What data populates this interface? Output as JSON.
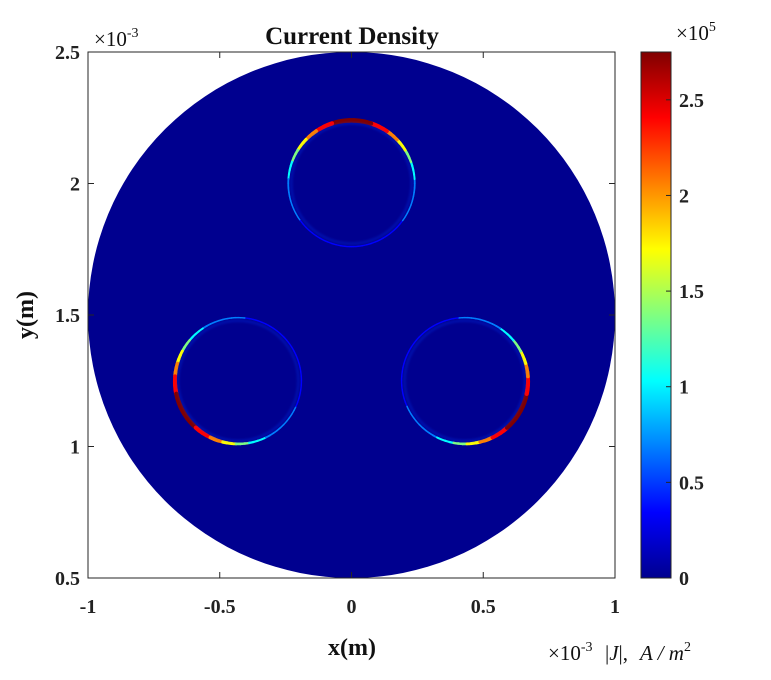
{
  "chart_data": {
    "type": "heatmap",
    "title": "Current Density",
    "xlabel": "x(m)",
    "ylabel": "y(m)",
    "x_ticks": [
      "-1",
      "-0.5",
      "0",
      "0.5",
      "1"
    ],
    "x_tick_values": [
      -1,
      -0.5,
      0,
      0.5,
      1
    ],
    "y_ticks": [
      "0.5",
      "1",
      "1.5",
      "2",
      "2.5"
    ],
    "y_tick_values": [
      0.5,
      1,
      1.5,
      2,
      2.5
    ],
    "xlim": [
      -1,
      1
    ],
    "ylim": [
      0.5,
      2.5
    ],
    "x_multiplier": {
      "base": "×10",
      "exp": "-3"
    },
    "y_multiplier": {
      "base": "×10",
      "exp": "-3"
    },
    "domain": {
      "center": [
        0,
        1.5
      ],
      "radius": 1.0
    },
    "conductors": [
      {
        "center": [
          0,
          2.0
        ],
        "radius": 0.24,
        "hot_angle_deg": 90
      },
      {
        "center": [
          -0.43,
          1.25
        ],
        "radius": 0.24,
        "hot_angle_deg": 210
      },
      {
        "center": [
          0.43,
          1.25
        ],
        "radius": 0.24,
        "hot_angle_deg": 330
      }
    ],
    "colorbar": {
      "colormap": "jet",
      "range": [
        0,
        2.75
      ],
      "ticks": [
        "0",
        "0.5",
        "1",
        "1.5",
        "2",
        "2.5"
      ],
      "tick_values": [
        0,
        0.5,
        1,
        1.5,
        2,
        2.5
      ],
      "multiplier": {
        "base": "×10",
        "exp": "5"
      },
      "label": {
        "var": "J",
        "sep": ",",
        "unit": "A / m",
        "unit_exp": "2"
      }
    },
    "grid": false
  },
  "colors": {
    "background": "#00008f",
    "jet": [
      "#00008f",
      "#0000ff",
      "#0080ff",
      "#00ffff",
      "#80ff80",
      "#ffff00",
      "#ff8000",
      "#ff0000",
      "#800000"
    ]
  }
}
